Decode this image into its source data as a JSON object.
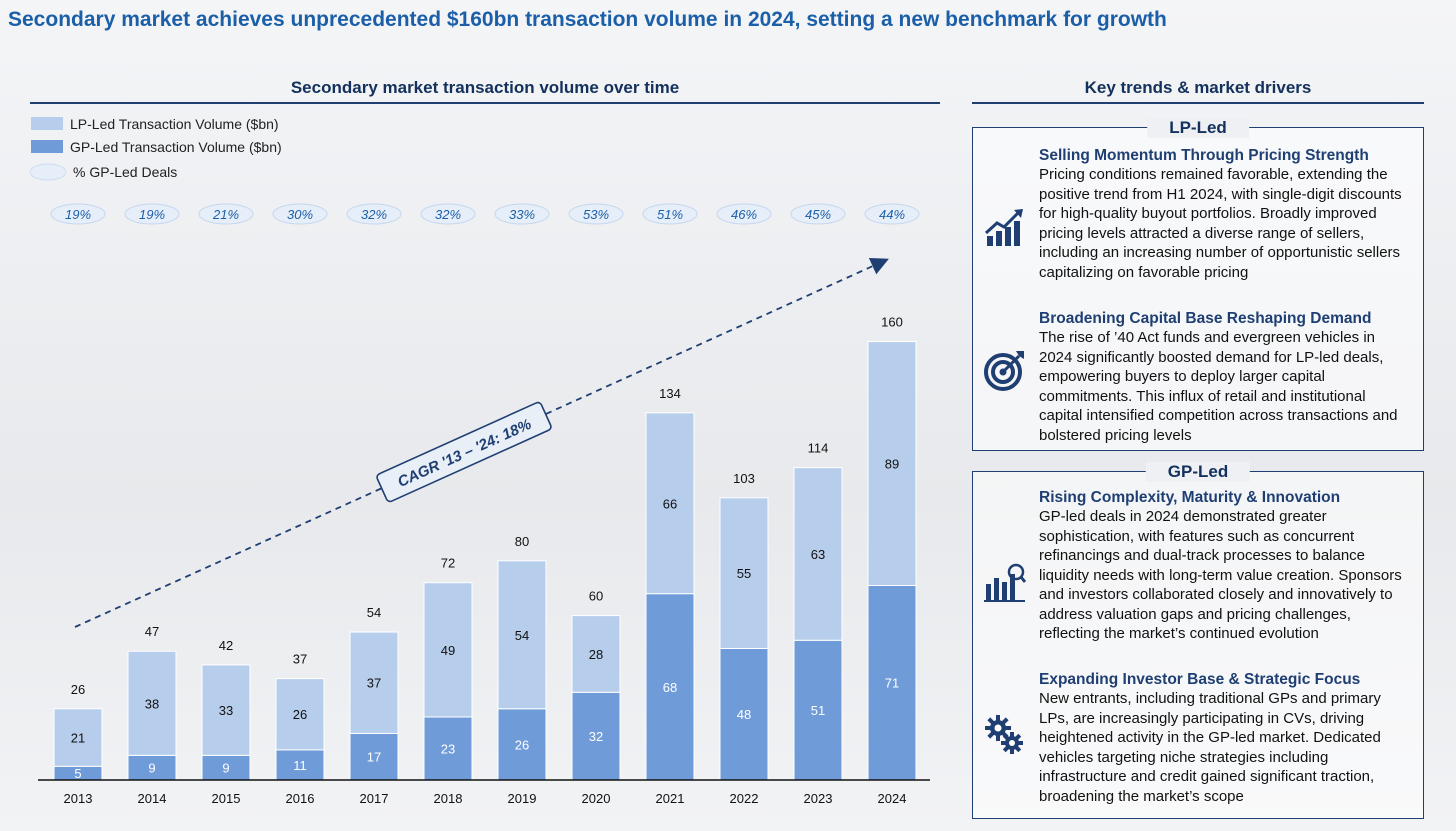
{
  "title": "Secondary market achieves unprecedented $160bn transaction volume in 2024, setting a new benchmark for growth",
  "left_heading": "Secondary market transaction volume over time",
  "right_heading": "Key trends & market drivers",
  "colors": {
    "lp": "#b7cdec",
    "gp": "#6f9bd8",
    "accent": "#1f3f73",
    "title": "#1b5fa8"
  },
  "chart_data": {
    "type": "bar",
    "stacked": true,
    "categories": [
      "2013",
      "2014",
      "2015",
      "2016",
      "2017",
      "2018",
      "2019",
      "2020",
      "2021",
      "2022",
      "2023",
      "2024"
    ],
    "series": [
      {
        "name": "GP-Led Transaction Volume ($bn)",
        "values": [
          5,
          9,
          9,
          11,
          17,
          23,
          26,
          32,
          68,
          48,
          51,
          71
        ]
      },
      {
        "name": "LP-Led Transaction Volume ($bn)",
        "values": [
          21,
          38,
          33,
          26,
          37,
          49,
          54,
          28,
          66,
          55,
          63,
          89
        ]
      }
    ],
    "totals": [
      26,
      47,
      42,
      37,
      54,
      72,
      80,
      60,
      134,
      103,
      114,
      160
    ],
    "gp_led_pct_label": "% GP-Led Deals",
    "gp_led_pct": [
      "19%",
      "19%",
      "21%",
      "30%",
      "32%",
      "32%",
      "33%",
      "53%",
      "51%",
      "46%",
      "45%",
      "44%"
    ],
    "annotation": "CAGR '13 – '24: 18%",
    "ylim": [
      0,
      170
    ],
    "legend_position": "top-left"
  },
  "lp_panel": {
    "title": "LP-Led",
    "items": [
      {
        "icon": "growth-chart-icon",
        "heading": "Selling Momentum Through Pricing Strength",
        "text": "Pricing conditions remained favorable, extending the positive trend from H1 2024, with single-digit discounts for high-quality buyout portfolios. Broadly improved pricing levels attracted a diverse range of sellers, including an increasing number of opportunistic sellers capitalizing on favorable pricing"
      },
      {
        "icon": "target-icon",
        "heading": "Broadening Capital Base Reshaping Demand",
        "text": "The rise of ’40 Act funds and evergreen vehicles in 2024 significantly boosted demand for LP-led deals, empowering buyers to deploy larger capital commitments. This influx of retail and institutional capital intensified competition across transactions and bolstered pricing levels"
      }
    ]
  },
  "gp_panel": {
    "title": "GP-Led",
    "items": [
      {
        "icon": "analytics-icon",
        "heading": "Rising Complexity, Maturity & Innovation",
        "text": "GP-led deals in 2024 demonstrated greater sophistication, with features such as concurrent refinancings and dual-track processes to balance liquidity needs with long-term value creation. Sponsors and investors collaborated closely and innovatively to address valuation gaps and pricing challenges, reflecting the market’s continued evolution"
      },
      {
        "icon": "gears-icon",
        "heading": "Expanding Investor Base & Strategic Focus",
        "text": "New entrants, including traditional GPs and primary LPs, are increasingly participating in CVs, driving heightened activity in the GP-led market. Dedicated vehicles targeting niche strategies including infrastructure and credit gained significant traction, broadening the market’s scope"
      }
    ]
  }
}
